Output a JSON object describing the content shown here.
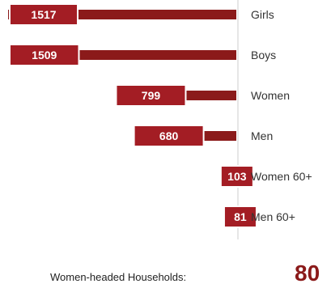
{
  "chart_data": {
    "type": "bar",
    "orientation": "horizontal",
    "categories": [
      "Girls",
      "Boys",
      "Women",
      "Men",
      "Women 60+",
      "Men 60+"
    ],
    "values": [
      1517,
      1509,
      799,
      680,
      103,
      81
    ],
    "xlim": [
      0,
      1517
    ],
    "bar_color": "#8b1a1a",
    "label_box_color": "#a31d24",
    "axis_color": "#cccccc"
  },
  "footer": {
    "label": "Women-headed Households:",
    "value": "80",
    "value_color": "#8b1a1a"
  }
}
